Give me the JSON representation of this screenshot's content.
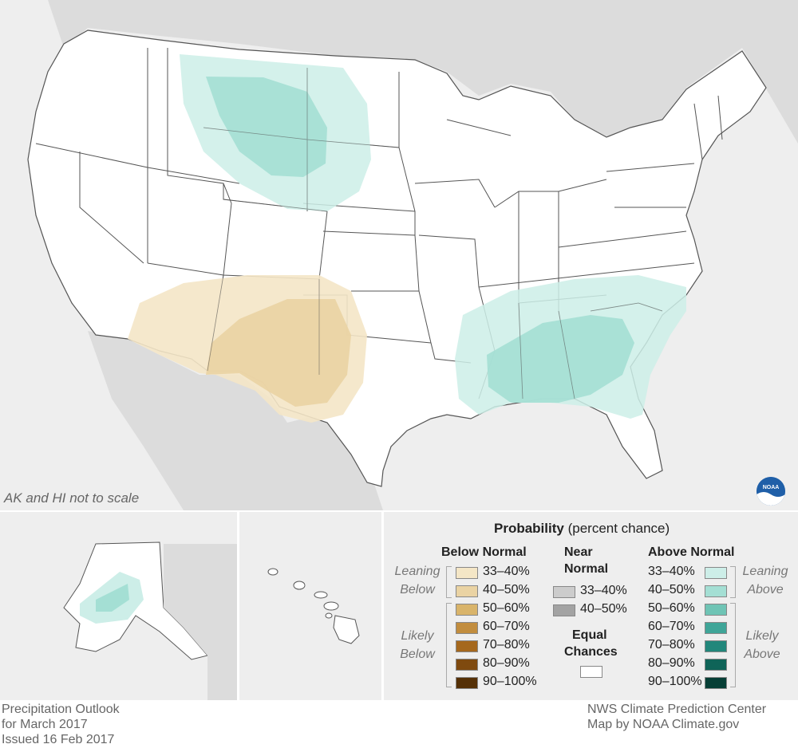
{
  "map": {
    "inset_note": "AK and HI not to scale"
  },
  "legend": {
    "title_bold": "Probability",
    "title_rest": "(percent chance)",
    "below": {
      "header": "Below Normal",
      "leaning_label": [
        "Leaning",
        "Below"
      ],
      "likely_label": [
        "Likely",
        "Below"
      ],
      "bins": [
        {
          "label": "33–40%",
          "color": "#f4e6c6"
        },
        {
          "label": "40–50%",
          "color": "#ead3a3"
        },
        {
          "label": "50–60%",
          "color": "#d9b46a"
        },
        {
          "label": "60–70%",
          "color": "#c28d3e"
        },
        {
          "label": "70–80%",
          "color": "#a5681d"
        },
        {
          "label": "80–90%",
          "color": "#7f4a0f"
        },
        {
          "label": "90–100%",
          "color": "#553006"
        }
      ]
    },
    "near": {
      "header": [
        "Near",
        "Normal"
      ],
      "bins": [
        {
          "label": "33–40%",
          "color": "#cccccc"
        },
        {
          "label": "40–50%",
          "color": "#a3a3a3"
        }
      ]
    },
    "equal": {
      "header": [
        "Equal",
        "Chances"
      ],
      "color": "#ffffff"
    },
    "above": {
      "header": "Above Normal",
      "leaning_label": [
        "Leaning",
        "Above"
      ],
      "likely_label": [
        "Likely",
        "Above"
      ],
      "bins": [
        {
          "label": "33–40%",
          "color": "#cdeee8"
        },
        {
          "label": "40–50%",
          "color": "#a4dfd4"
        },
        {
          "label": "50–60%",
          "color": "#6fc4b5"
        },
        {
          "label": "60–70%",
          "color": "#3fa598"
        },
        {
          "label": "70–80%",
          "color": "#22877b"
        },
        {
          "label": "80–90%",
          "color": "#0f6458"
        },
        {
          "label": "90–100%",
          "color": "#063e35"
        }
      ]
    }
  },
  "footer": {
    "left": [
      "Precipitation Outlook",
      "for March 2017",
      "Issued 16 Feb 2017"
    ],
    "right": [
      "NWS Climate Prediction Center",
      "Map by NOAA Climate.gov"
    ]
  },
  "logo": {
    "text": "NOAA"
  }
}
